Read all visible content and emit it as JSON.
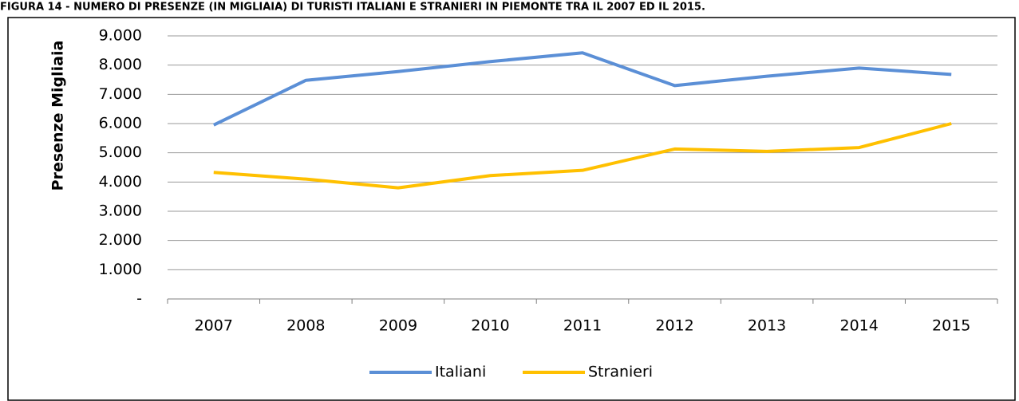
{
  "chart_data": {
    "type": "line",
    "title": "FIGURA 14 - NUMERO DI PRESENZE (IN MIGLIAIA) DI TURISTI ITALIANI E STRANIERI IN PIEMONTE TRA IL 2007 ED IL 2015.",
    "y_label": "Presenze Migliaia",
    "categories": [
      "2007",
      "2008",
      "2009",
      "2010",
      "2011",
      "2012",
      "2013",
      "2014",
      "2015"
    ],
    "series": [
      {
        "name": "Italiani",
        "color": "#5b8fd6",
        "values": [
          5950,
          7480,
          7780,
          8120,
          8420,
          7300,
          7620,
          7900,
          7680
        ]
      },
      {
        "name": "Stranieri",
        "color": "#ffc000",
        "values": [
          4330,
          4100,
          3800,
          4220,
          4400,
          5130,
          5050,
          5180,
          6000
        ]
      }
    ],
    "ylim": [
      0,
      9000
    ],
    "yticks": [
      {
        "value": 0,
        "label": "-"
      },
      {
        "value": 1000,
        "label": "1.000"
      },
      {
        "value": 2000,
        "label": "2.000"
      },
      {
        "value": 3000,
        "label": "3.000"
      },
      {
        "value": 4000,
        "label": "4.000"
      },
      {
        "value": 5000,
        "label": "5.000"
      },
      {
        "value": 6000,
        "label": "6.000"
      },
      {
        "value": 7000,
        "label": "7.000"
      },
      {
        "value": 8000,
        "label": "8.000"
      },
      {
        "value": 9000,
        "label": "9.000"
      }
    ],
    "grid": true,
    "legend": "bottom"
  }
}
